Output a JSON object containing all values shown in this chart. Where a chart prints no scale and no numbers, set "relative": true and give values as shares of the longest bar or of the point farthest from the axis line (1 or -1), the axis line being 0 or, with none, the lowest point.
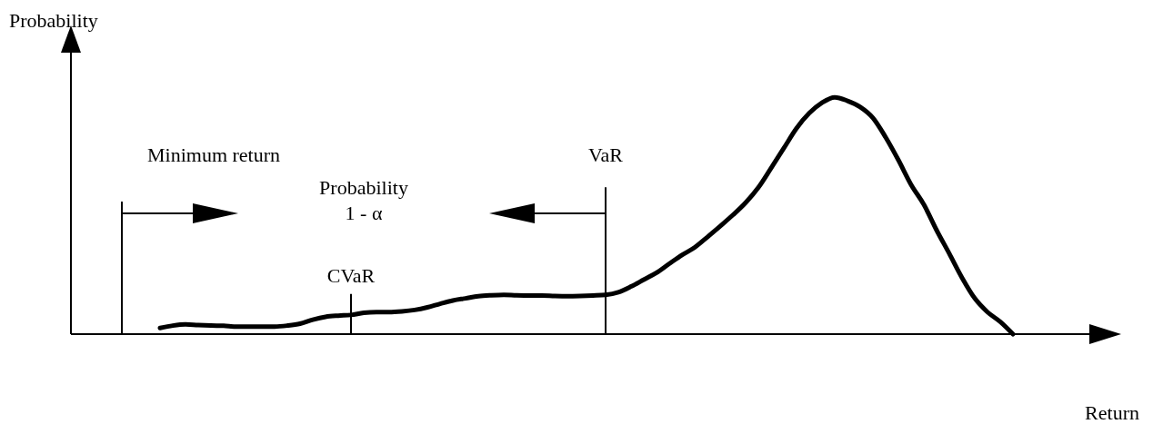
{
  "chart_data": {
    "type": "line",
    "relative": true,
    "xlabel": "Return",
    "ylabel": "Probability",
    "marker": "none",
    "line_style": "solid",
    "categories": [
      null,
      null,
      null,
      null,
      null,
      null,
      null,
      null,
      null,
      null,
      null,
      null,
      null,
      null,
      null,
      null,
      null,
      null,
      null,
      null,
      null,
      null,
      null,
      null,
      null,
      null,
      null,
      null,
      null,
      null,
      null,
      null,
      null,
      null,
      null,
      null,
      null,
      null,
      null,
      null,
      null,
      null,
      null,
      null,
      null,
      null,
      null,
      null,
      null,
      null,
      null,
      null,
      null,
      null,
      null,
      null,
      null,
      null,
      null,
      null,
      null,
      null,
      null,
      null,
      null,
      null,
      null,
      null,
      null,
      null,
      null,
      null,
      null
    ],
    "series": [
      {
        "color": "#000000",
        "values": [
          null,
          null,
          null,
          null,
          null,
          0.026,
          0.036,
          0.041,
          0.038,
          0.036,
          0.035,
          0.032,
          0.032,
          0.032,
          0.032,
          0.036,
          0.044,
          0.061,
          0.073,
          0.078,
          0.081,
          0.09,
          0.093,
          0.093,
          0.096,
          0.102,
          0.113,
          0.128,
          0.142,
          0.151,
          0.16,
          0.164,
          0.166,
          0.164,
          0.163,
          0.163,
          0.161,
          0.16,
          0.161,
          0.163,
          0.166,
          0.177,
          0.201,
          0.23,
          0.259,
          0.297,
          0.334,
          0.366,
          0.41,
          0.456,
          0.503,
          0.555,
          0.619,
          0.701,
          0.785,
          0.869,
          0.933,
          0.977,
          1,
          0.985,
          0.959,
          0.913,
          0.831,
          0.735,
          0.631,
          0.547,
          0.439,
          0.34,
          0.238,
          0.151,
          0.093,
          0.052,
          0
        ]
      }
    ],
    "annotations": [
      "Minimum return",
      "VaR",
      "Probability 1 - α",
      "CVaR"
    ]
  }
}
